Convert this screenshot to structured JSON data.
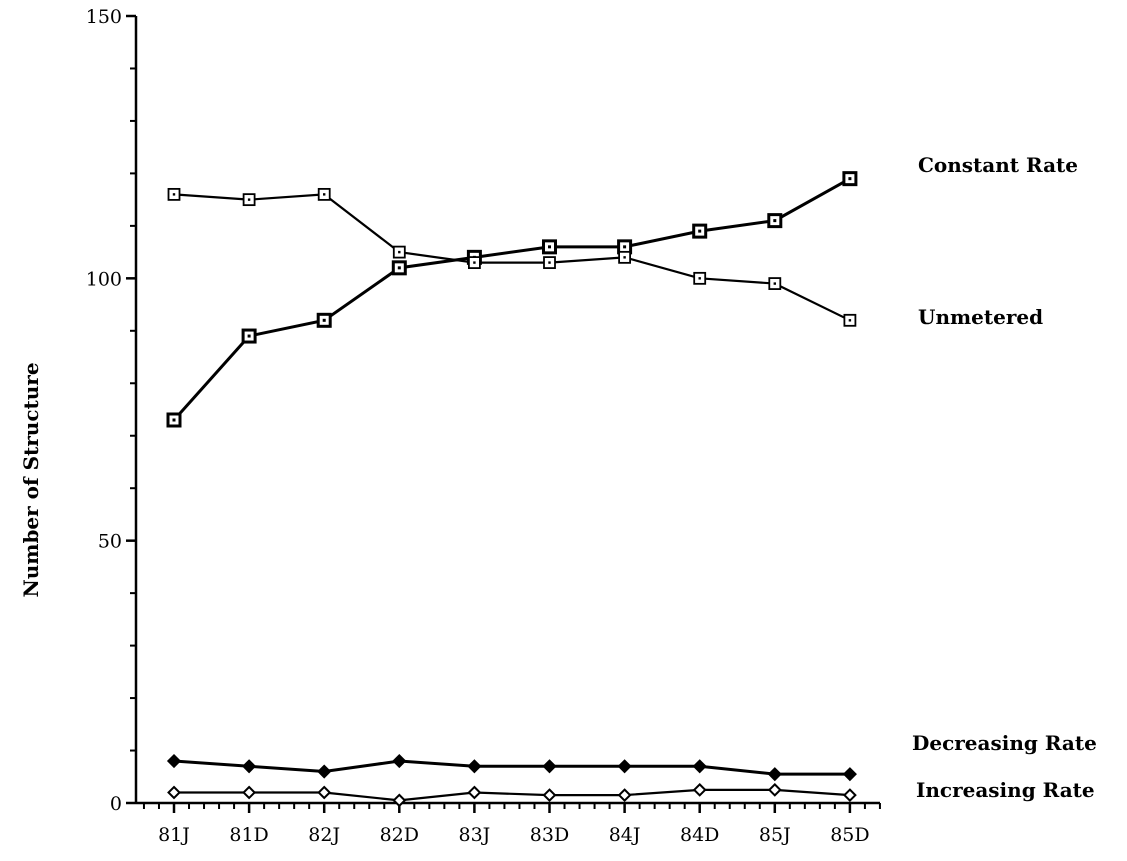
{
  "chart_data": {
    "type": "line",
    "title": "",
    "xlabel": "",
    "ylabel": "Number of Structure",
    "categories": [
      "81J",
      "81D",
      "82J",
      "82D",
      "83J",
      "83D",
      "84J",
      "84D",
      "85J",
      "85D"
    ],
    "ylim": [
      0,
      150
    ],
    "y_ticks": [
      "0",
      "50",
      "100",
      "150"
    ],
    "grid": false,
    "legend": "inline-right",
    "series": [
      {
        "name": "Constant Rate",
        "marker": "square-bold",
        "values": [
          73,
          89,
          92,
          102,
          104,
          106,
          106,
          109,
          111,
          119
        ]
      },
      {
        "name": "Unmetered",
        "marker": "square-open",
        "values": [
          116,
          115,
          116,
          105,
          103,
          103,
          104,
          100,
          99,
          92
        ]
      },
      {
        "name": "Decreasing Rate",
        "marker": "diamond-filled",
        "values": [
          8,
          7,
          6,
          8,
          7,
          7,
          7,
          7,
          5.5,
          5.5
        ]
      },
      {
        "name": "Increasing Rate",
        "marker": "diamond-open",
        "values": [
          2,
          2,
          2,
          0.5,
          2,
          1.5,
          1.5,
          2.5,
          2.5,
          1.5
        ]
      }
    ]
  }
}
